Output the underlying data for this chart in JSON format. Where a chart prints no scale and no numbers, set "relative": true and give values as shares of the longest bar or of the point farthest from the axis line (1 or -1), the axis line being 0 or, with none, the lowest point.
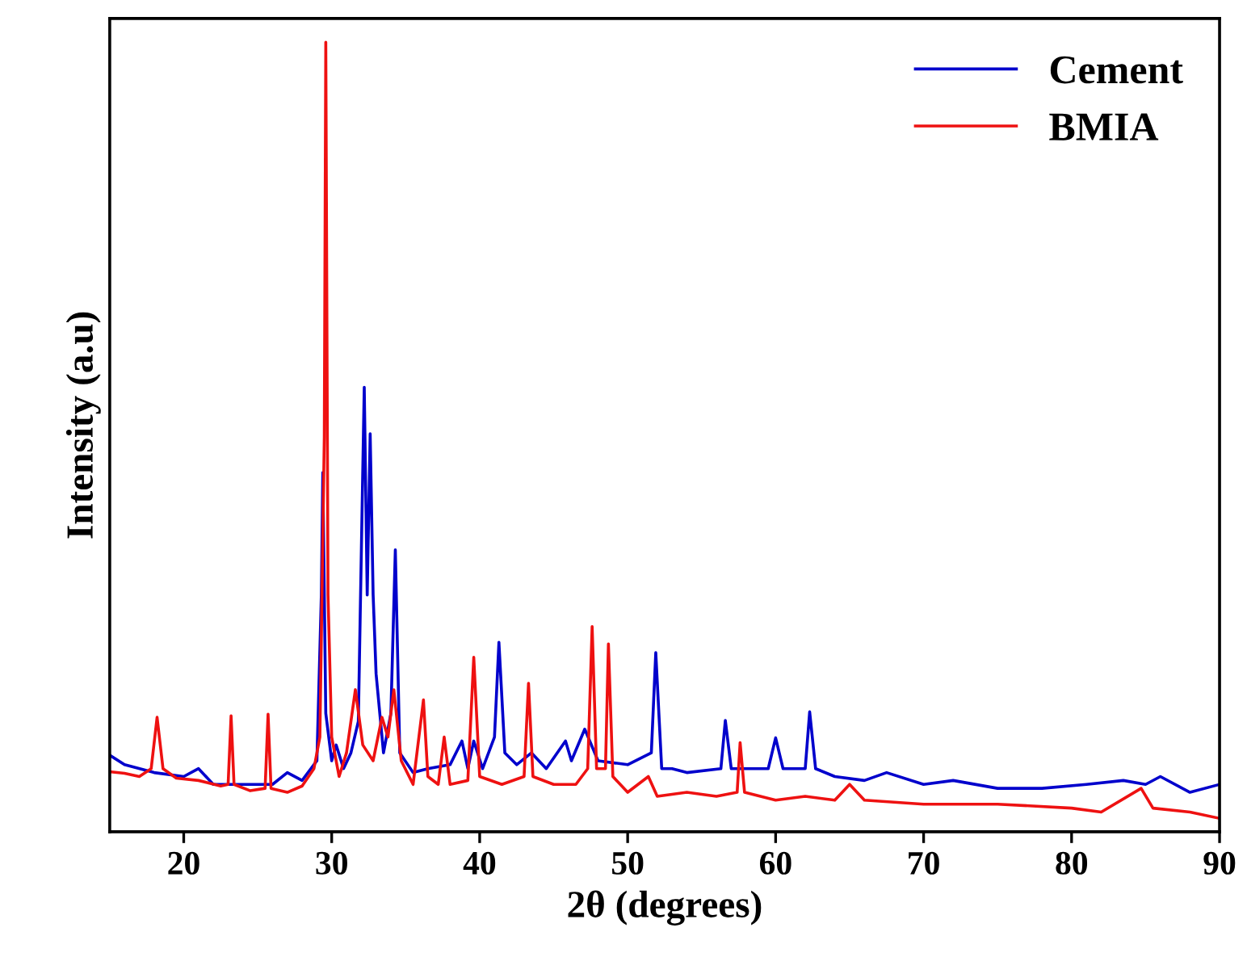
{
  "chart_data": {
    "type": "line",
    "xlabel": "2θ (degrees)",
    "ylabel": "Intensity (a.u)",
    "relative": true,
    "xlim": [
      15,
      90
    ],
    "xticks": [
      20,
      30,
      40,
      50,
      60,
      70,
      80,
      90
    ],
    "tick_labels": "x",
    "legend": "top right",
    "grid": false,
    "marker": "none",
    "line_style": "solid",
    "series": [
      {
        "name": "Cement",
        "color": "#0000cc",
        "x": [
          15,
          16,
          18,
          20,
          21,
          22,
          24,
          26,
          27,
          28,
          29.0,
          29.3,
          29.4,
          29.6,
          30.0,
          30.3,
          30.8,
          31.3,
          31.8,
          32.2,
          32.4,
          32.6,
          32.8,
          33.0,
          33.5,
          34.0,
          34.3,
          34.6,
          35.5,
          36.5,
          38,
          38.8,
          39.2,
          39.6,
          40.2,
          41.0,
          41.3,
          41.7,
          42.5,
          43.5,
          44.5,
          45.8,
          46.2,
          47.1,
          48,
          50,
          51.6,
          51.9,
          52.3,
          53,
          54,
          56.3,
          56.6,
          57,
          59.5,
          60.0,
          60.5,
          62.0,
          62.3,
          62.7,
          64,
          66,
          67.5,
          70,
          72,
          75,
          78,
          81,
          83.5,
          85,
          86,
          88,
          90
        ],
        "values": [
          0.097,
          0.085,
          0.075,
          0.07,
          0.08,
          0.06,
          0.06,
          0.06,
          0.075,
          0.065,
          0.09,
          0.3,
          0.455,
          0.15,
          0.09,
          0.11,
          0.08,
          0.1,
          0.14,
          0.563,
          0.3,
          0.504,
          0.3,
          0.2,
          0.1,
          0.15,
          0.357,
          0.1,
          0.075,
          0.08,
          0.085,
          0.115,
          0.08,
          0.115,
          0.08,
          0.12,
          0.24,
          0.1,
          0.085,
          0.1,
          0.08,
          0.115,
          0.09,
          0.13,
          0.09,
          0.085,
          0.1,
          0.227,
          0.08,
          0.08,
          0.075,
          0.08,
          0.141,
          0.08,
          0.08,
          0.119,
          0.08,
          0.08,
          0.152,
          0.08,
          0.07,
          0.065,
          0.075,
          0.06,
          0.065,
          0.055,
          0.055,
          0.06,
          0.065,
          0.06,
          0.07,
          0.05,
          0.06
        ]
      },
      {
        "name": "BMIA",
        "color": "#ee1111",
        "x": [
          15,
          16,
          17,
          17.8,
          18.2,
          18.6,
          19.5,
          21,
          22.5,
          23.0,
          23.2,
          23.4,
          24.5,
          25.5,
          25.7,
          25.9,
          27,
          28,
          28.8,
          29.2,
          29.5,
          29.6,
          29.75,
          30.0,
          30.5,
          31.0,
          31.6,
          32.1,
          32.8,
          33.4,
          33.8,
          34.2,
          34.7,
          35.5,
          36.2,
          36.5,
          37.2,
          37.6,
          38,
          39.2,
          39.6,
          40,
          41.5,
          43.0,
          43.3,
          43.6,
          45,
          46.5,
          47.3,
          47.6,
          47.9,
          48.5,
          48.7,
          49.0,
          50,
          51.4,
          52,
          54,
          56,
          57.4,
          57.6,
          57.9,
          60,
          62,
          64,
          65,
          66,
          70,
          75,
          80,
          82,
          84.7,
          85.5,
          88,
          90
        ],
        "values": [
          0.076,
          0.074,
          0.07,
          0.08,
          0.145,
          0.08,
          0.068,
          0.065,
          0.058,
          0.06,
          0.147,
          0.06,
          0.052,
          0.055,
          0.149,
          0.055,
          0.05,
          0.058,
          0.08,
          0.12,
          0.5,
          1.0,
          0.3,
          0.12,
          0.07,
          0.1,
          0.18,
          0.11,
          0.09,
          0.145,
          0.12,
          0.18,
          0.09,
          0.06,
          0.167,
          0.07,
          0.06,
          0.12,
          0.06,
          0.065,
          0.221,
          0.07,
          0.06,
          0.07,
          0.188,
          0.07,
          0.06,
          0.06,
          0.08,
          0.26,
          0.08,
          0.08,
          0.238,
          0.07,
          0.05,
          0.07,
          0.045,
          0.05,
          0.045,
          0.05,
          0.113,
          0.05,
          0.04,
          0.045,
          0.04,
          0.06,
          0.04,
          0.035,
          0.035,
          0.03,
          0.025,
          0.055,
          0.03,
          0.025,
          0.017
        ]
      }
    ]
  }
}
